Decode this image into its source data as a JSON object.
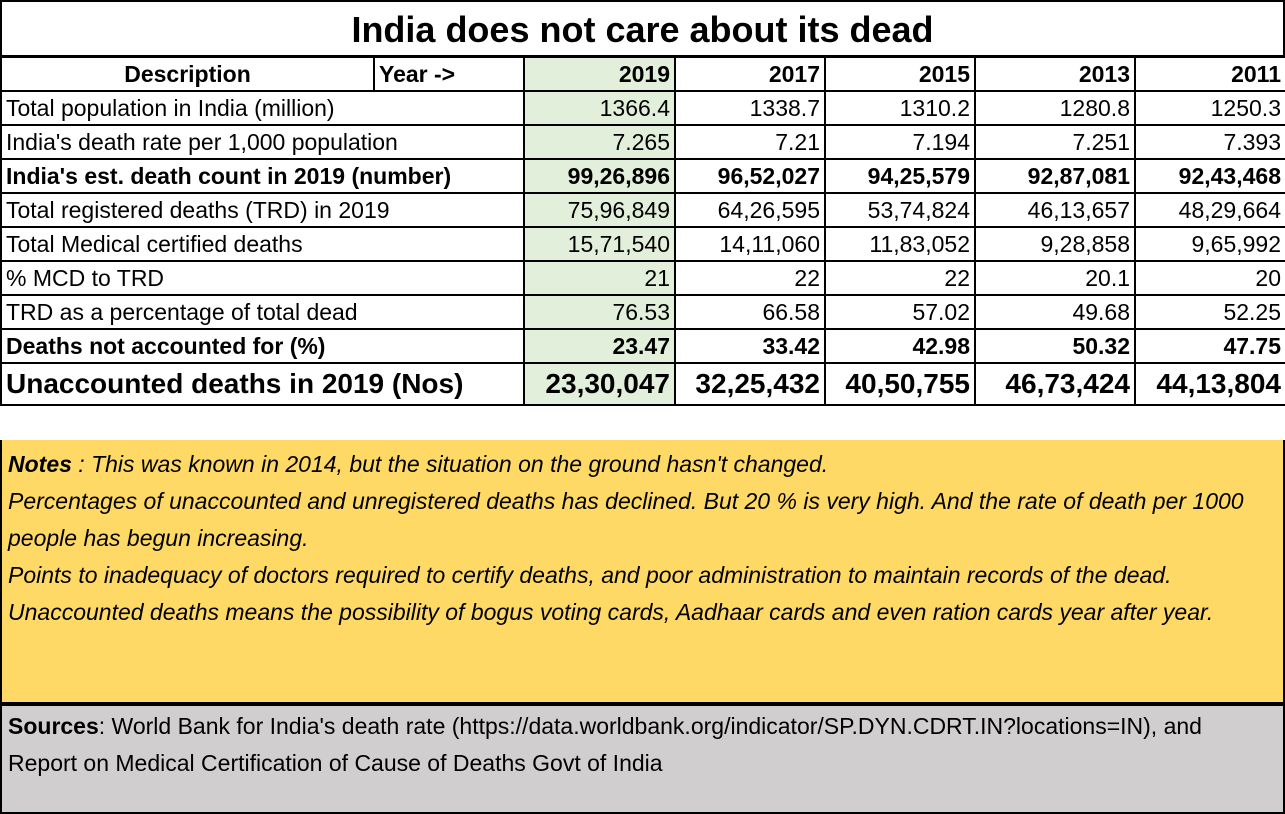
{
  "title": "India does not care about its dead",
  "header": {
    "description": "Description",
    "year_arrow": "Year ->",
    "years": [
      "2019",
      "2017",
      "2015",
      "2013",
      "2011"
    ]
  },
  "rows": [
    {
      "label": "Total population in India  (million)",
      "values": [
        "1366.4",
        "1338.7",
        "1310.2",
        "1280.8",
        "1250.3"
      ]
    },
    {
      "label": "India's death rate per 1,000 population",
      "values": [
        "7.265",
        "7.21",
        "7.194",
        "7.251",
        "7.393"
      ]
    },
    {
      "label": "India's est. death count in 2019 (number)",
      "values": [
        "99,26,896",
        "96,52,027",
        "94,25,579",
        "92,87,081",
        "92,43,468"
      ]
    },
    {
      "label": "Total registered deaths (TRD) in 2019",
      "values": [
        "75,96,849",
        "64,26,595",
        "53,74,824",
        "46,13,657",
        "48,29,664"
      ]
    },
    {
      "label": "Total Medical certified deaths",
      "values": [
        "15,71,540",
        "14,11,060",
        "11,83,052",
        "9,28,858",
        "9,65,992"
      ]
    },
    {
      "label": "% MCD to TRD",
      "values": [
        "21",
        "22",
        "22",
        "20.1",
        "20"
      ]
    },
    {
      "label": "TRD as a percentage of total dead",
      "values": [
        "76.53",
        "66.58",
        "57.02",
        "49.68",
        "52.25"
      ]
    },
    {
      "label": "Deaths not accounted for (%)",
      "values": [
        "23.47",
        "33.42",
        "42.98",
        "50.32",
        "47.75"
      ]
    },
    {
      "label": "Unaccounted deaths in 2019 (Nos)",
      "values": [
        "23,30,047",
        "32,25,432",
        "40,50,755",
        "46,73,424",
        "44,13,804"
      ]
    }
  ],
  "notes": {
    "label": "Notes",
    "first": " : This was known in 2014, but the situation on the ground hasn't changed.",
    "p2": "Percentages of unaccounted and unregistered deaths has declined.  But 20 % is very high. And the rate of death per 1000 people has begun increasing.",
    "p3": "Points to inadequacy of doctors required to certify deaths, and poor administration to maintain records of the dead.",
    "p4": "Unaccounted deaths means the possibility of bogus voting cards, Aadhaar cards and even ration cards year after year."
  },
  "sources": {
    "label": "Sources",
    "text": ": World Bank for India's death rate (https://data.worldbank.org/indicator/SP.DYN.CDRT.IN?locations=IN), and Report on Medical Certification of Cause of Deaths   Govt of India"
  }
}
